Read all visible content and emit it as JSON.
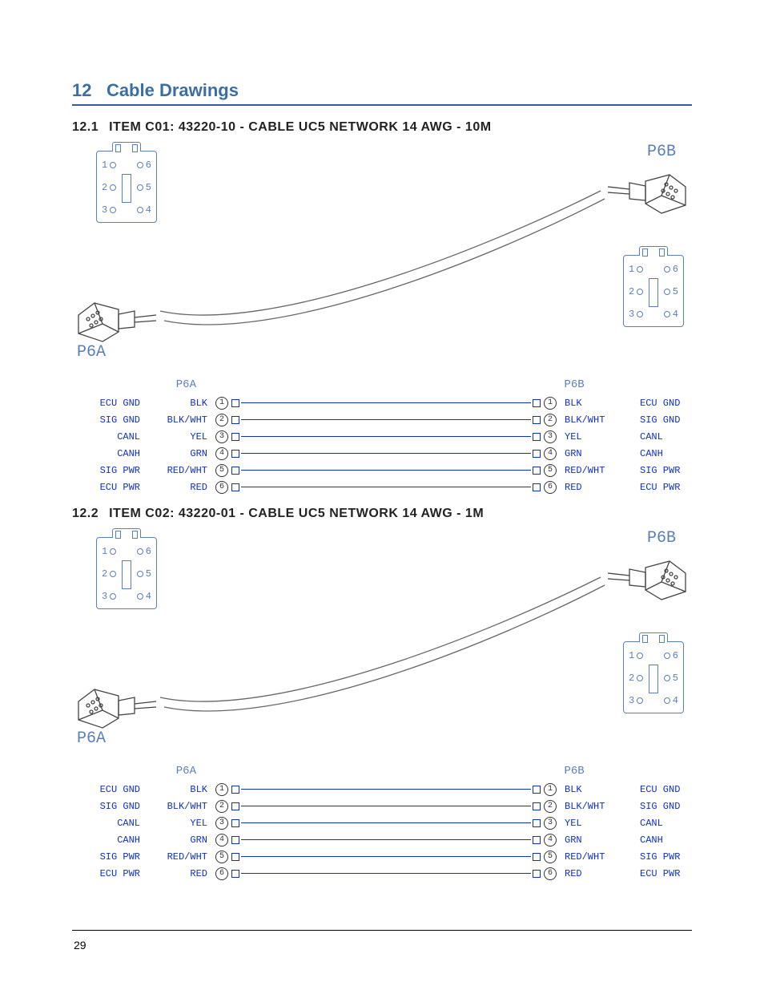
{
  "section": {
    "num": "12",
    "title": "Cable Drawings"
  },
  "page_number": "29",
  "colors": {
    "accent": "#3b6ea5",
    "line": "#5a7fb8",
    "wire": "#1030c0"
  },
  "items": [
    {
      "num": "12.1",
      "title": "ITEM C01: 43220-10 - CABLE UC5 NETWORK 14 AWG - 10M",
      "connectors": {
        "left": "P6A",
        "right": "P6B"
      },
      "face_pins": [
        "1",
        "2",
        "3",
        "4",
        "5",
        "6"
      ],
      "pinout_headers": {
        "left": "P6A",
        "right": "P6B"
      },
      "pins": [
        {
          "n": "1",
          "sig_l": "ECU GND",
          "col_l": "BLK",
          "col_r": "BLK",
          "sig_r": "ECU GND"
        },
        {
          "n": "2",
          "sig_l": "SIG GND",
          "col_l": "BLK/WHT",
          "col_r": "BLK/WHT",
          "sig_r": "SIG GND"
        },
        {
          "n": "3",
          "sig_l": "CANL",
          "col_l": "YEL",
          "col_r": "YEL",
          "sig_r": "CANL"
        },
        {
          "n": "4",
          "sig_l": "CANH",
          "col_l": "GRN",
          "col_r": "GRN",
          "sig_r": "CANH"
        },
        {
          "n": "5",
          "sig_l": "SIG PWR",
          "col_l": "RED/WHT",
          "col_r": "RED/WHT",
          "sig_r": "SIG PWR"
        },
        {
          "n": "6",
          "sig_l": "ECU PWR",
          "col_l": "RED",
          "col_r": "RED",
          "sig_r": "ECU PWR"
        }
      ]
    },
    {
      "num": "12.2",
      "title": "ITEM C02: 43220-01 - CABLE UC5 NETWORK 14 AWG - 1M",
      "connectors": {
        "left": "P6A",
        "right": "P6B"
      },
      "face_pins": [
        "1",
        "2",
        "3",
        "4",
        "5",
        "6"
      ],
      "pinout_headers": {
        "left": "P6A",
        "right": "P6B"
      },
      "pins": [
        {
          "n": "1",
          "sig_l": "ECU GND",
          "col_l": "BLK",
          "col_r": "BLK",
          "sig_r": "ECU GND"
        },
        {
          "n": "2",
          "sig_l": "SIG GND",
          "col_l": "BLK/WHT",
          "col_r": "BLK/WHT",
          "sig_r": "SIG GND"
        },
        {
          "n": "3",
          "sig_l": "CANL",
          "col_l": "YEL",
          "col_r": "YEL",
          "sig_r": "CANL"
        },
        {
          "n": "4",
          "sig_l": "CANH",
          "col_l": "GRN",
          "col_r": "GRN",
          "sig_r": "CANH"
        },
        {
          "n": "5",
          "sig_l": "SIG PWR",
          "col_l": "RED/WHT",
          "col_r": "RED/WHT",
          "sig_r": "SIG PWR"
        },
        {
          "n": "6",
          "sig_l": "ECU PWR",
          "col_l": "RED",
          "col_r": "RED",
          "sig_r": "ECU PWR"
        }
      ]
    }
  ]
}
